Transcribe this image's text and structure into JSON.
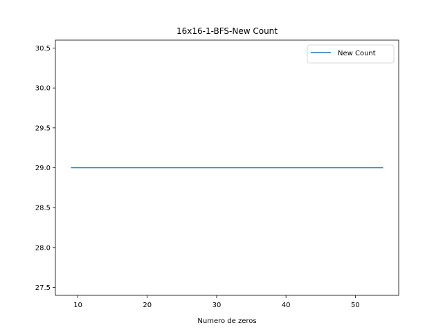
{
  "chart_data": {
    "type": "line",
    "title": "16x16-1-BFS-New Count",
    "xlabel": "Numero de zeros",
    "ylabel": "",
    "xlim": [
      6.75,
      56.25
    ],
    "ylim": [
      27.4,
      30.6
    ],
    "xticks": [
      10,
      20,
      30,
      40,
      50
    ],
    "yticks": [
      27.5,
      28.0,
      28.5,
      29.0,
      29.5,
      30.0,
      30.5
    ],
    "grid": false,
    "legend_position": "top-right",
    "series": [
      {
        "name": "New Count",
        "color": "#1f77b4",
        "x": [
          9,
          54
        ],
        "y": [
          29.0,
          29.0
        ]
      }
    ]
  }
}
